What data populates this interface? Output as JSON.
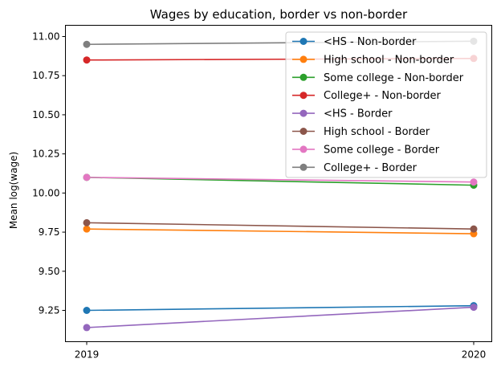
{
  "chart_data": {
    "type": "line",
    "title": "Wages by education, border vs non-border",
    "xlabel": "",
    "ylabel": "Mean log(wage)",
    "x": [
      "2019",
      "2020"
    ],
    "ylim": [
      9.07,
      11.06
    ],
    "yticks": [
      "9.25",
      "9.50",
      "9.75",
      "10.00",
      "10.25",
      "10.50",
      "10.75",
      "11.00"
    ],
    "grid": false,
    "legend_position": "top-right",
    "series": [
      {
        "name": "<HS - Non-border",
        "values": [
          9.25,
          9.28
        ],
        "color": "#1f77b4"
      },
      {
        "name": "High school - Non-border",
        "values": [
          9.77,
          9.74
        ],
        "color": "#ff7f0e"
      },
      {
        "name": "Some college - Non-border",
        "values": [
          10.1,
          10.05
        ],
        "color": "#2ca02c"
      },
      {
        "name": "College+ - Non-border",
        "values": [
          10.85,
          10.86
        ],
        "color": "#d62728"
      },
      {
        "name": "<HS - Border",
        "values": [
          9.14,
          9.27
        ],
        "color": "#9467bd"
      },
      {
        "name": "High school - Border",
        "values": [
          9.81,
          9.77
        ],
        "color": "#8c564b"
      },
      {
        "name": "Some college - Border",
        "values": [
          10.1,
          10.07
        ],
        "color": "#e377c2"
      },
      {
        "name": "College+ - Border",
        "values": [
          10.95,
          10.97
        ],
        "color": "#7f7f7f"
      }
    ]
  }
}
